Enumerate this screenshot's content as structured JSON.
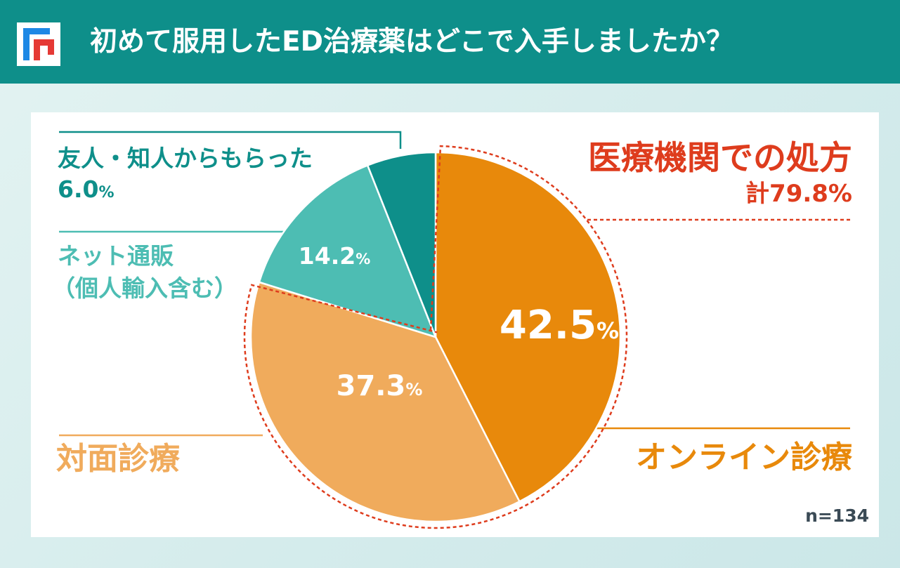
{
  "header": {
    "title": "初めて服用したED治療薬はどこで入手しましたか？"
  },
  "colors": {
    "header_bg": "#0e8f8a",
    "online": "#e8890b",
    "taimen": "#f0ab5c",
    "net": "#4dbdb3",
    "friend": "#0e8f8a",
    "red": "#de3c1d",
    "dark_text": "#3a4a55"
  },
  "chart_data": {
    "type": "pie",
    "title": "初めて服用したED治療薬はどこで入手しましたか？",
    "sample_size_label": "n=134",
    "slices": [
      {
        "key": "online",
        "name": "オンライン診療",
        "value": 42.5,
        "value_label": "42.5",
        "unit": "%"
      },
      {
        "key": "taimen",
        "name": "対面診療",
        "value": 37.3,
        "value_label": "37.3",
        "unit": "%"
      },
      {
        "key": "net",
        "name_lines": [
          "ネット通販",
          "（個人輸入含む）"
        ],
        "value": 14.2,
        "value_label": "14.2",
        "unit": "%"
      },
      {
        "key": "friend",
        "name": "友人・知人からもらった",
        "value": 6.0,
        "value_label": "6.0",
        "unit": "%"
      }
    ],
    "group": {
      "name": "医療機関での処方",
      "total_label": "計79.8%",
      "members": [
        "online",
        "taimen"
      ]
    }
  }
}
